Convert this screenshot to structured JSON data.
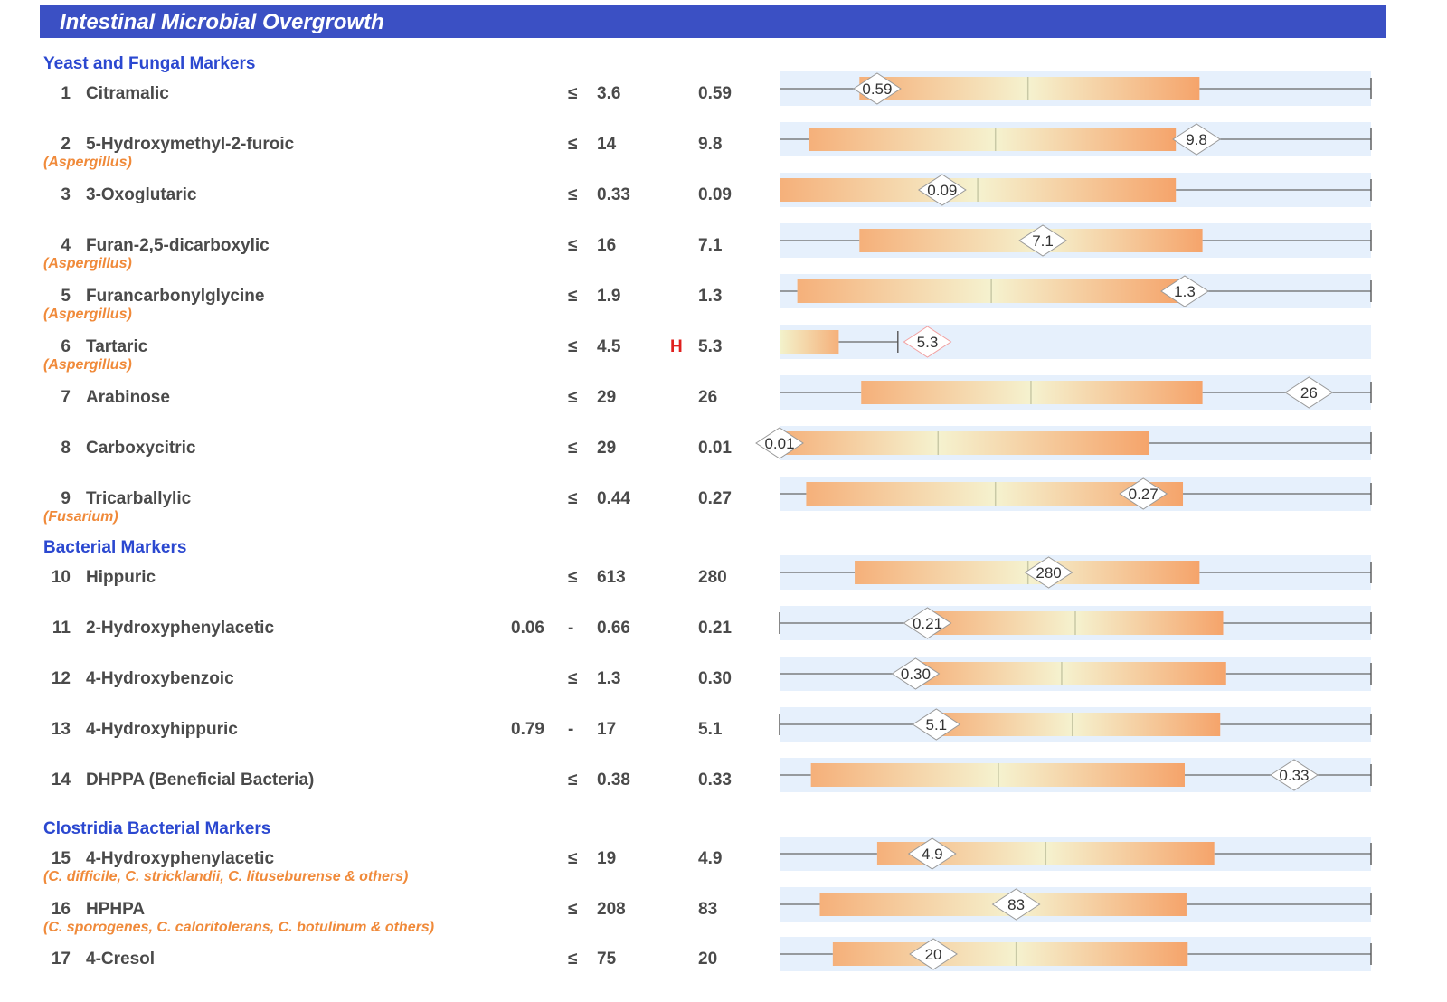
{
  "header": {
    "title": "Intestinal Microbial Overgrowth"
  },
  "sections": [
    {
      "label": "Yeast and Fungal Markers"
    },
    {
      "label": "Bacterial Markers"
    },
    {
      "label": "Clostridia Bacterial Markers"
    }
  ],
  "colors": {
    "header_bg": "#3b50c4",
    "section_text": "#2b48d0",
    "note_text": "#f08a3a",
    "flag_high": "#e0201e",
    "bar_track": "#e6f0fc"
  },
  "rows": [
    {
      "num": "1",
      "name": "Citramalic",
      "note": "",
      "low": "",
      "sym": "≤",
      "high": "3.6",
      "flag": "",
      "value": "0.59",
      "range": {
        "boxStart": 0.135,
        "median": 0.42,
        "boxEnd": 0.71,
        "marker": 0.165,
        "lineLeft": true,
        "lineRight": true,
        "rightCap": true,
        "leftCap": false
      }
    },
    {
      "num": "2",
      "name": "5-Hydroxymethyl-2-furoic",
      "note": "(Aspergillus)",
      "low": "",
      "sym": "≤",
      "high": "14",
      "flag": "",
      "value": "9.8",
      "range": {
        "boxStart": 0.05,
        "median": 0.365,
        "boxEnd": 0.67,
        "marker": 0.705,
        "lineLeft": true,
        "lineRight": true,
        "rightCap": true,
        "leftCap": false
      }
    },
    {
      "num": "3",
      "name": "3-Oxoglutaric",
      "note": "",
      "low": "",
      "sym": "≤",
      "high": "0.33",
      "flag": "",
      "value": "0.09",
      "range": {
        "boxStart": 0.0,
        "median": 0.335,
        "boxEnd": 0.67,
        "marker": 0.275,
        "lineLeft": false,
        "lineRight": true,
        "rightCap": true,
        "leftCap": false
      }
    },
    {
      "num": "4",
      "name": "Furan-2,5-dicarboxylic",
      "note": "(Aspergillus)",
      "low": "",
      "sym": "≤",
      "high": "16",
      "flag": "",
      "value": "7.1",
      "range": {
        "boxStart": 0.135,
        "median": 0.445,
        "boxEnd": 0.715,
        "marker": 0.445,
        "lineLeft": true,
        "lineRight": true,
        "rightCap": true,
        "leftCap": false
      }
    },
    {
      "num": "5",
      "name": "Furancarbonylglycine",
      "note": "(Aspergillus)",
      "low": "",
      "sym": "≤",
      "high": "1.9",
      "flag": "",
      "value": "1.3",
      "range": {
        "boxStart": 0.03,
        "median": 0.358,
        "boxEnd": 0.68,
        "marker": 0.685,
        "lineLeft": true,
        "lineRight": true,
        "rightCap": true,
        "leftCap": false
      }
    },
    {
      "num": "6",
      "name": "Tartaric",
      "note": "(Aspergillus)",
      "low": "",
      "sym": "≤",
      "high": "4.5",
      "flag": "H",
      "value": "5.3",
      "range": {
        "boxStart": 0.0,
        "median": null,
        "boxEnd": 0.1,
        "marker": 0.25,
        "lineLeft": false,
        "lineRight": false,
        "rightCap": false,
        "leftCap": false,
        "shortLineEnd": 0.2,
        "highlight": true
      }
    },
    {
      "num": "7",
      "name": "Arabinose",
      "note": "",
      "low": "",
      "sym": "≤",
      "high": "29",
      "flag": "",
      "value": "26",
      "range": {
        "boxStart": 0.138,
        "median": 0.425,
        "boxEnd": 0.715,
        "marker": 0.895,
        "lineLeft": true,
        "lineRight": true,
        "rightCap": true,
        "leftCap": false
      }
    },
    {
      "num": "8",
      "name": "Carboxycitric",
      "note": "",
      "low": "",
      "sym": "≤",
      "high": "29",
      "flag": "",
      "value": "0.01",
      "range": {
        "boxStart": 0.0,
        "median": 0.268,
        "boxEnd": 0.625,
        "marker": 0.0,
        "lineLeft": false,
        "lineRight": true,
        "rightCap": true,
        "leftCap": false
      }
    },
    {
      "num": "9",
      "name": "Tricarballylic",
      "note": "(Fusarium)",
      "low": "",
      "sym": "≤",
      "high": "0.44",
      "flag": "",
      "value": "0.27",
      "range": {
        "boxStart": 0.045,
        "median": 0.365,
        "boxEnd": 0.682,
        "marker": 0.615,
        "lineLeft": true,
        "lineRight": true,
        "rightCap": true,
        "leftCap": false
      }
    },
    {
      "num": "10",
      "name": "Hippuric",
      "note": "",
      "low": "",
      "sym": "≤",
      "high": "613",
      "flag": "",
      "value": "280",
      "range": {
        "boxStart": 0.127,
        "median": 0.42,
        "boxEnd": 0.71,
        "marker": 0.455,
        "lineLeft": true,
        "lineRight": true,
        "rightCap": true,
        "leftCap": false
      }
    },
    {
      "num": "11",
      "name": "2-Hydroxyphenylacetic",
      "note": "",
      "low": "0.06",
      "sym": "-",
      "high": "0.66",
      "flag": "",
      "value": "0.21",
      "range": {
        "boxStart": 0.25,
        "median": 0.5,
        "boxEnd": 0.75,
        "marker": 0.25,
        "lineLeft": true,
        "lineRight": true,
        "rightCap": true,
        "leftCap": true
      }
    },
    {
      "num": "12",
      "name": "4-Hydroxybenzoic",
      "note": "",
      "low": "",
      "sym": "≤",
      "high": "1.3",
      "flag": "",
      "value": "0.30",
      "range": {
        "boxStart": 0.23,
        "median": 0.477,
        "boxEnd": 0.755,
        "marker": 0.23,
        "lineLeft": true,
        "lineRight": true,
        "rightCap": true,
        "leftCap": false
      }
    },
    {
      "num": "13",
      "name": "4-Hydroxyhippuric",
      "note": "",
      "low": "0.79",
      "sym": "-",
      "high": "17",
      "flag": "",
      "value": "5.1",
      "range": {
        "boxStart": 0.265,
        "median": 0.495,
        "boxEnd": 0.745,
        "marker": 0.265,
        "lineLeft": true,
        "lineRight": true,
        "rightCap": true,
        "leftCap": true
      }
    },
    {
      "num": "14",
      "name": "DHPPA (Beneficial Bacteria)",
      "note": "",
      "low": "",
      "sym": "≤",
      "high": "0.38",
      "flag": "",
      "value": "0.33",
      "range": {
        "boxStart": 0.053,
        "median": 0.37,
        "boxEnd": 0.685,
        "marker": 0.87,
        "lineLeft": true,
        "lineRight": true,
        "rightCap": true,
        "leftCap": false
      }
    },
    {
      "num": "15",
      "name": "4-Hydroxyphenylacetic",
      "note": "(C. difficile, C. stricklandii, C. lituseburense & others)",
      "low": "",
      "sym": "≤",
      "high": "19",
      "flag": "",
      "value": "4.9",
      "range": {
        "boxStart": 0.165,
        "median": 0.45,
        "boxEnd": 0.735,
        "marker": 0.258,
        "lineLeft": true,
        "lineRight": true,
        "rightCap": true,
        "leftCap": false
      }
    },
    {
      "num": "16",
      "name": "HPHPA",
      "note": "(C. sporogenes, C. caloritolerans, C. botulinum & others)",
      "low": "",
      "sym": "≤",
      "high": "208",
      "flag": "",
      "value": "83",
      "range": {
        "boxStart": 0.068,
        "median": 0.4,
        "boxEnd": 0.688,
        "marker": 0.4,
        "lineLeft": true,
        "lineRight": true,
        "rightCap": true,
        "leftCap": false
      }
    },
    {
      "num": "17",
      "name": "4-Cresol",
      "note": "",
      "low": "",
      "sym": "≤",
      "high": "75",
      "flag": "",
      "value": "20",
      "range": {
        "boxStart": 0.09,
        "median": 0.4,
        "boxEnd": 0.69,
        "marker": 0.26,
        "lineLeft": true,
        "lineRight": true,
        "rightCap": true,
        "leftCap": false
      }
    }
  ]
}
